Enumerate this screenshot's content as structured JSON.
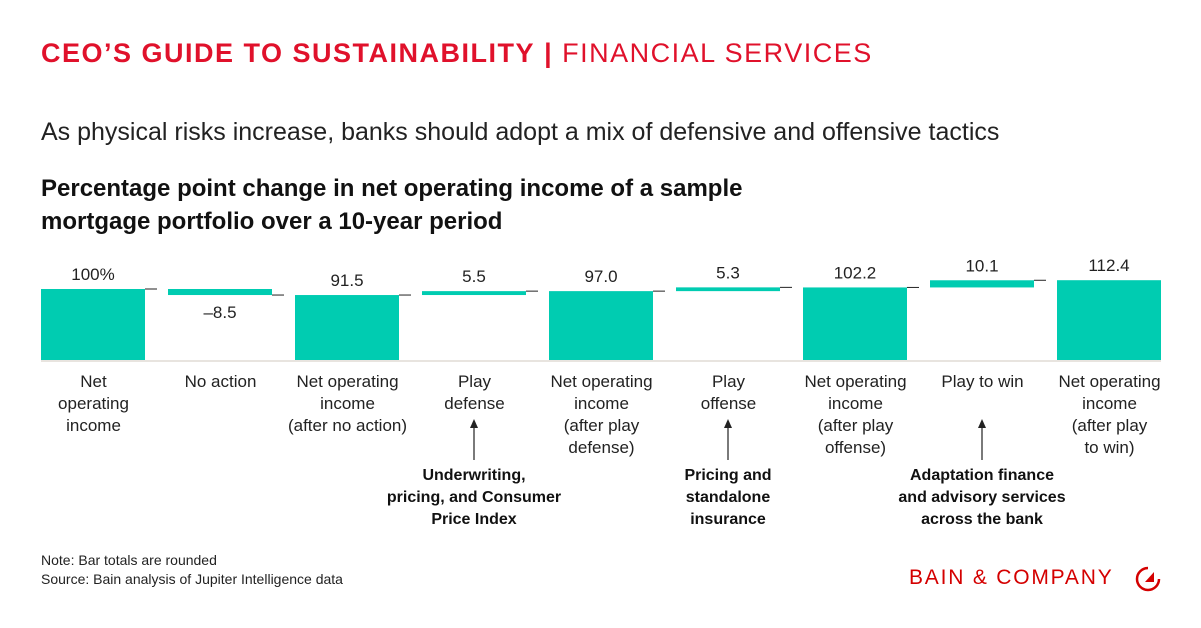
{
  "header": {
    "series_title": "CEO’S GUIDE TO SUSTAINABILITY",
    "separator": "|",
    "section": "FINANCIAL SERVICES"
  },
  "subtitle": "As physical risks increase, banks should adopt a mix of defensive and offensive tactics",
  "chart_data": {
    "type": "waterfall",
    "title": "Percentage point change in net operating income of a sample mortgage portfolio over a 10-year period",
    "categories": [
      "Net operating income",
      "No action",
      "Net operating income (after no action)",
      "Play defense",
      "Net operating income (after play defense)",
      "Play offense",
      "Net operating income (after play offense)",
      "Play to win",
      "Net operating income (after play to win)"
    ],
    "category_lines": [
      [
        "Net",
        "operating",
        "income"
      ],
      [
        "No action"
      ],
      [
        "Net operating",
        "income",
        "(after no action)"
      ],
      [
        "Play",
        "defense"
      ],
      [
        "Net operating",
        "income",
        "(after play",
        "defense)"
      ],
      [
        "Play",
        "offense"
      ],
      [
        "Net operating",
        "income",
        "(after play",
        "offense)"
      ],
      [
        "Play to win"
      ],
      [
        "Net operating",
        "income",
        "(after play",
        "to win)"
      ]
    ],
    "kinds": [
      "total",
      "delta",
      "total",
      "delta",
      "total",
      "delta",
      "total",
      "delta",
      "total"
    ],
    "values": [
      100,
      -8.5,
      91.5,
      5.5,
      97.0,
      5.3,
      102.2,
      10.1,
      112.4
    ],
    "labels": [
      "100%",
      "–8.5",
      "91.5",
      "5.5",
      "97.0",
      "5.3",
      "102.2",
      "10.1",
      "112.4"
    ],
    "ylim": [
      0,
      112.4
    ],
    "bar_color": "#00ccb1",
    "annotations": [
      {
        "category_index": 3,
        "lines": [
          "Underwriting,",
          "pricing, and Consumer",
          "Price Index"
        ]
      },
      {
        "category_index": 5,
        "lines": [
          "Pricing and",
          "standalone",
          "insurance"
        ]
      },
      {
        "category_index": 7,
        "lines": [
          "Adaptation finance",
          "and advisory services",
          "across the bank"
        ]
      }
    ]
  },
  "notes": {
    "note": "Note: Bar totals are rounded",
    "source": "Source: Bain analysis of Jupiter Intelligence data"
  },
  "logo": {
    "text": "BAIN & COMPANY",
    "icon": "bain-clock-logo-icon",
    "color": "#d40000"
  }
}
